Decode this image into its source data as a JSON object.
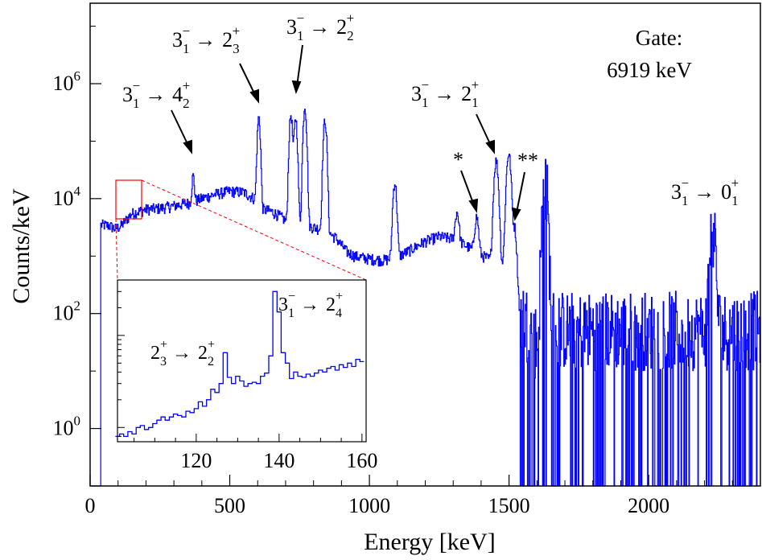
{
  "chart_data": {
    "type": "line",
    "xlabel": "Energy [keV]",
    "ylabel": "Counts/keV",
    "xlim": [
      0,
      2400
    ],
    "ylim_log10": [
      -1.0,
      7.4
    ],
    "log_y": true,
    "x_ticks": [
      {
        "value": 0,
        "label": "0"
      },
      {
        "value": 500,
        "label": "500"
      },
      {
        "value": 1000,
        "label": "1000"
      },
      {
        "value": 1500,
        "label": "1500"
      },
      {
        "value": 2000,
        "label": "2000"
      }
    ],
    "y_ticks": [
      {
        "exp": 0,
        "base": "10",
        "sup": "0"
      },
      {
        "exp": 2,
        "base": "10",
        "sup": "2"
      },
      {
        "exp": 4,
        "base": "10",
        "sup": "4"
      },
      {
        "exp": 6,
        "base": "10",
        "sup": "6"
      }
    ],
    "series": [
      {
        "color": "#0000ff",
        "continuum": [
          [
            40,
            3500
          ],
          [
            70,
            3400
          ],
          [
            90,
            3000
          ],
          [
            110,
            3300
          ],
          [
            150,
            5500
          ],
          [
            200,
            6500
          ],
          [
            250,
            6800
          ],
          [
            300,
            7500
          ],
          [
            360,
            8500
          ],
          [
            400,
            10000
          ],
          [
            450,
            12000
          ],
          [
            500,
            13500
          ],
          [
            550,
            13000
          ],
          [
            590,
            10000
          ],
          [
            620,
            6500
          ],
          [
            650,
            6000
          ],
          [
            680,
            5000
          ],
          [
            700,
            4200
          ],
          [
            730,
            3700
          ],
          [
            760,
            3500
          ],
          [
            790,
            3300
          ],
          [
            820,
            3000
          ],
          [
            850,
            2600
          ],
          [
            880,
            2100
          ],
          [
            920,
            1200
          ],
          [
            950,
            1000
          ],
          [
            1000,
            900
          ],
          [
            1050,
            850
          ],
          [
            1100,
            950
          ],
          [
            1150,
            1300
          ],
          [
            1200,
            1800
          ],
          [
            1250,
            2200
          ],
          [
            1300,
            2000
          ],
          [
            1350,
            1500
          ],
          [
            1400,
            1050
          ],
          [
            1450,
            800
          ],
          [
            1490,
            700
          ],
          [
            1500,
            300
          ],
          [
            1520,
            180
          ],
          [
            1540,
            100
          ],
          [
            1570,
            60
          ],
          [
            1600,
            30
          ],
          [
            1630,
            30
          ],
          [
            1650,
            60
          ],
          [
            1700,
            50
          ],
          [
            2400,
            50
          ]
        ],
        "peaks": [
          [
            15,
            8000
          ],
          [
            370,
            16000
          ],
          [
            605,
            250000
          ],
          [
            720,
            280000
          ],
          [
            737,
            250000
          ],
          [
            770,
            400000
          ],
          [
            842,
            230000
          ],
          [
            1092,
            18000
          ],
          [
            1315,
            4000
          ],
          [
            1385,
            3600
          ],
          [
            1455,
            45000
          ],
          [
            1500,
            60000
          ],
          [
            1520,
            3000
          ],
          [
            1630,
            20000
          ],
          [
            2230,
            2600
          ]
        ]
      }
    ],
    "annotations": {
      "gate": {
        "line1": "Gate:",
        "line2": "6919 keV"
      },
      "t1": {
        "from": "3",
        "from_sub": "1",
        "from_sup": "−",
        "arrow": "→",
        "to": "4",
        "to_sub": "2",
        "to_sup": "+"
      },
      "t2": {
        "from": "3",
        "from_sub": "1",
        "from_sup": "−",
        "arrow": "→",
        "to": "2",
        "to_sub": "3",
        "to_sup": "+"
      },
      "t3": {
        "from": "3",
        "from_sub": "1",
        "from_sup": "−",
        "arrow": "→",
        "to": "2",
        "to_sub": "2",
        "to_sup": "+"
      },
      "t4": {
        "from": "3",
        "from_sub": "1",
        "from_sup": "−",
        "arrow": "→",
        "to": "2",
        "to_sub": "1",
        "to_sup": "+"
      },
      "t5": {
        "from": "3",
        "from_sub": "1",
        "from_sup": "−",
        "arrow": "→",
        "to": "0",
        "to_sub": "1",
        "to_sup": "+"
      },
      "star1": "*",
      "star2": "**"
    },
    "inset": {
      "xlim": [
        101,
        161
      ],
      "x_ticks": [
        {
          "value": 120,
          "label": "120"
        },
        {
          "value": 140,
          "label": "140"
        },
        {
          "value": 160,
          "label": "160"
        }
      ],
      "x": [
        101,
        102,
        103,
        104,
        105,
        106,
        107,
        108,
        109,
        110,
        111,
        112,
        113,
        114,
        115,
        116,
        117,
        118,
        119,
        120,
        121,
        122,
        123,
        124,
        125,
        126,
        127,
        128,
        129,
        130,
        131,
        132,
        133,
        134,
        135,
        136,
        137,
        138,
        139,
        140,
        141,
        142,
        143,
        144,
        145,
        146,
        147,
        148,
        149,
        150,
        151,
        152,
        153,
        154,
        155,
        156,
        157,
        158,
        159,
        160
      ],
      "counts": [
        0.8,
        0.85,
        0.8,
        0.9,
        0.85,
        1.0,
        1.05,
        0.95,
        1.0,
        1.1,
        1.2,
        1.3,
        1.2,
        1.3,
        1.4,
        1.35,
        1.3,
        1.5,
        1.45,
        1.6,
        1.9,
        1.7,
        2.0,
        2.6,
        2.4,
        3.0,
        6.5,
        3.5,
        3.0,
        3.6,
        3.2,
        2.8,
        3.0,
        3.1,
        3.0,
        3.6,
        3.9,
        6.0,
        30.0,
        18.0,
        6.5,
        5.0,
        3.4,
        4.0,
        3.6,
        3.5,
        3.8,
        3.6,
        3.9,
        4.2,
        4.0,
        4.4,
        4.6,
        4.2,
        4.8,
        4.5,
        5.0,
        4.6,
        5.5,
        5.2
      ],
      "annotations": {
        "a1": {
          "from": "2",
          "from_sub": "3",
          "from_sup": "+",
          "arrow": "→",
          "to": "2",
          "to_sub": "2",
          "to_sup": "+"
        },
        "a2": {
          "from": "3",
          "from_sub": "1",
          "from_sup": "−",
          "arrow": "→",
          "to": "2",
          "to_sub": "4",
          "to_sup": "+"
        }
      }
    }
  }
}
